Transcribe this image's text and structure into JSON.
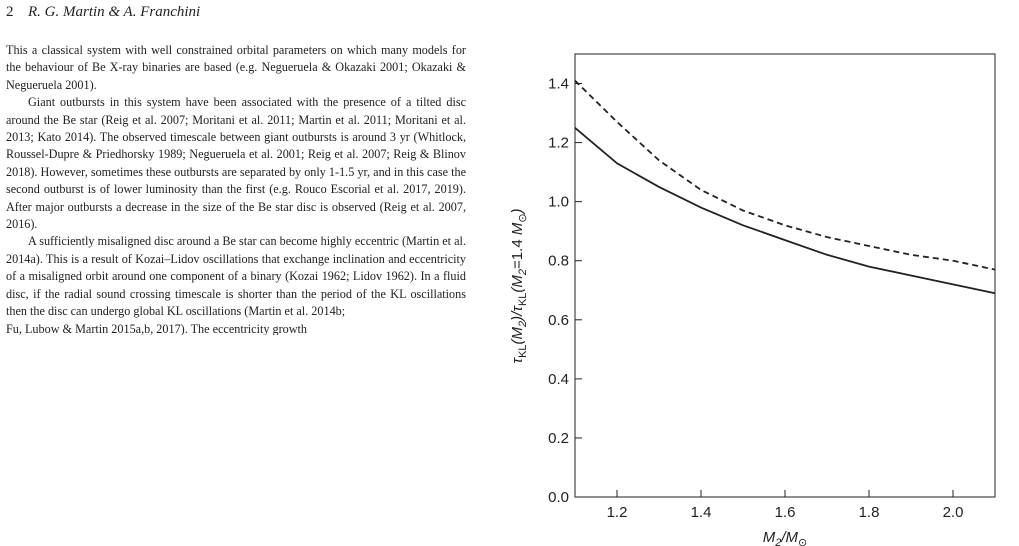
{
  "header": {
    "page_number": "2",
    "authors": "R. G. Martin & A. Franchini"
  },
  "paragraphs": [
    "This a classical system with well constrained orbital parameters on which many models for the behaviour of Be X-ray binaries are based (e.g. Negueruela & Okazaki 2001; Okazaki & Negueruela 2001).",
    "Giant outbursts in this system have been associated with the presence of a tilted disc around the Be star (Reig et al. 2007; Moritani et al. 2011; Martin et al. 2011; Moritani et al. 2013; Kato 2014). The observed timescale between giant outbursts is around 3 yr (Whitlock, Roussel-Dupre & Priedhorsky 1989; Negueruela et al. 2001; Reig et al. 2007; Reig & Blinov 2018). However, sometimes these outbursts are separated by only 1-1.5 yr, and in this case the second outburst is of lower luminosity than the first (e.g. Rouco Escorial et al. 2017, 2019). After major outbursts a decrease in the size of the Be star disc is observed (Reig et al. 2007, 2016).",
    "A sufficiently misaligned disc around a Be star can become highly eccentric (Martin et al. 2014a). This is a result of Kozai–Lidov oscillations that exchange inclination and eccentricity of a misaligned orbit around one component of a binary (Kozai 1962; Lidov 1962). In a fluid disc, if the radial sound crossing timescale is shorter than the period of the KL oscillations then the disc can undergo global KL oscillations (Martin et al. 2014b;",
    "Fu, Lubow & Martin 2015a,b, 2017). The eccentricity growth"
  ],
  "chart_data": {
    "type": "line",
    "xlabel": "M2/M⊙",
    "ylabel": "τKL(M2)/τKL(M2=1.4 M⊙)",
    "xlim": [
      1.1,
      2.1
    ],
    "ylim": [
      0.0,
      1.5
    ],
    "x_ticks": [
      "1.2",
      "1.4",
      "1.6",
      "1.8",
      "2.0"
    ],
    "y_ticks": [
      "0.0",
      "0.2",
      "0.4",
      "0.6",
      "0.8",
      "1.0",
      "1.2",
      "1.4"
    ],
    "grid": false,
    "series": [
      {
        "style": "dashed",
        "color": "#222222",
        "x": [
          1.1,
          1.2,
          1.3,
          1.4,
          1.5,
          1.6,
          1.7,
          1.8,
          1.9,
          2.0,
          2.1
        ],
        "values": [
          1.41,
          1.27,
          1.14,
          1.04,
          0.97,
          0.92,
          0.88,
          0.85,
          0.82,
          0.8,
          0.77
        ]
      },
      {
        "style": "solid",
        "color": "#222222",
        "x": [
          1.1,
          1.2,
          1.3,
          1.4,
          1.5,
          1.6,
          1.7,
          1.8,
          1.9,
          2.0,
          2.1
        ],
        "values": [
          1.25,
          1.13,
          1.05,
          0.98,
          0.92,
          0.87,
          0.82,
          0.78,
          0.75,
          0.72,
          0.69
        ]
      }
    ]
  }
}
